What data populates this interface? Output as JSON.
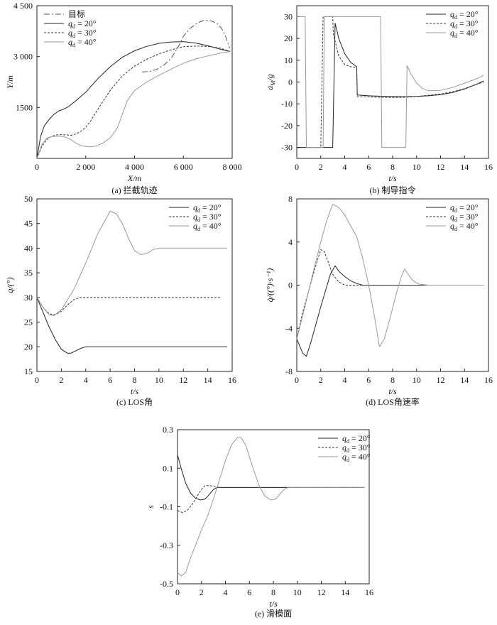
{
  "legend_labels": {
    "target": "目标",
    "q20": "q_d = 20°",
    "q30": "q_d = 30°",
    "q40": "q_d = 40°"
  },
  "chart_data": [
    {
      "id": "a",
      "type": "line",
      "caption": "(a) 拦截轨迹",
      "xlabel": "X/m",
      "ylabel": "Y/m",
      "xlim": [
        0,
        8000
      ],
      "ylim": [
        0,
        4500
      ],
      "xticks": [
        0,
        2000,
        4000,
        6000,
        8000
      ],
      "xticklabels": [
        "0",
        "2 000",
        "4 000",
        "6 000",
        "8 000"
      ],
      "yticks": [
        1500,
        3000,
        4500
      ],
      "yticklabels": [
        "1500",
        "3 000",
        "4 500"
      ],
      "legend_position": "top-left",
      "series": [
        {
          "key": "target",
          "style": "dashdot",
          "x": [
            4300,
            4600,
            4900,
            5200,
            5500,
            5800,
            6000,
            6300,
            6600,
            6800,
            7000,
            7200,
            7400,
            7550,
            7700,
            7800,
            7900
          ],
          "y": [
            2550,
            2560,
            2620,
            2750,
            2950,
            3300,
            3600,
            3850,
            4000,
            4060,
            4070,
            4040,
            3960,
            3850,
            3650,
            3450,
            3250
          ]
        },
        {
          "key": "q20",
          "style": "solid",
          "x": [
            0,
            150,
            300,
            500,
            700,
            900,
            1100,
            1300,
            1600,
            2000,
            2500,
            3000,
            3500,
            4000,
            4500,
            5000,
            5500,
            6000,
            6500,
            7000,
            7500,
            7920
          ],
          "y": [
            0,
            650,
            950,
            1150,
            1300,
            1400,
            1450,
            1530,
            1700,
            1950,
            2350,
            2700,
            2980,
            3170,
            3300,
            3390,
            3430,
            3440,
            3400,
            3320,
            3220,
            3150
          ]
        },
        {
          "key": "q30",
          "style": "dashed",
          "x": [
            0,
            200,
            400,
            600,
            800,
            1000,
            1200,
            1400,
            1600,
            1800,
            2000,
            2200,
            2500,
            3000,
            3500,
            4000,
            4500,
            5000,
            5500,
            6000,
            6500,
            7000,
            7500,
            7920
          ],
          "y": [
            0,
            350,
            550,
            650,
            690,
            700,
            690,
            680,
            720,
            800,
            920,
            1100,
            1450,
            2000,
            2430,
            2720,
            2920,
            3080,
            3200,
            3290,
            3310,
            3300,
            3250,
            3150
          ]
        },
        {
          "key": "q40",
          "style": "solid",
          "x": [
            0,
            200,
            400,
            600,
            800,
            1000,
            1200,
            1400,
            1600,
            1800,
            2000,
            2200,
            2400,
            2700,
            3000,
            3300,
            3500,
            3700,
            4000,
            4500,
            5000,
            5500,
            6000,
            6500,
            7000,
            7500,
            7920
          ],
          "y": [
            0,
            400,
            600,
            640,
            650,
            650,
            620,
            550,
            450,
            380,
            350,
            340,
            360,
            450,
            600,
            900,
            1300,
            1700,
            2000,
            2250,
            2450,
            2630,
            2800,
            2930,
            3020,
            3100,
            3150
          ]
        }
      ]
    },
    {
      "id": "b",
      "type": "line",
      "caption": "(b) 制导指令",
      "xlabel": "t/s",
      "ylabel": "a_M/g",
      "xlim": [
        0,
        16
      ],
      "ylim": [
        -35,
        35
      ],
      "xticks": [
        0,
        2,
        4,
        6,
        8,
        10,
        12,
        14,
        16
      ],
      "yticks": [
        -30,
        -20,
        -10,
        0,
        10,
        20,
        30
      ],
      "legend_position": "top-right",
      "series": [
        {
          "key": "q20",
          "style": "solid",
          "x": [
            0,
            2.3,
            2.3,
            3.0,
            3.2,
            3.5,
            4.0,
            4.5,
            5.0,
            5.05,
            5.2,
            6,
            7,
            8,
            9,
            10,
            11,
            12,
            13,
            14,
            15,
            15.6
          ],
          "y": [
            -30,
            -30,
            -30,
            -30,
            27,
            20,
            13,
            9,
            7,
            -6,
            -6,
            -6.3,
            -6.5,
            -6.6,
            -6.7,
            -6.6,
            -6.3,
            -5.8,
            -4.8,
            -3.2,
            -1,
            0.5
          ]
        },
        {
          "key": "q30",
          "style": "dashed",
          "x": [
            0,
            2.0,
            2.2,
            3.0,
            3.05,
            3.5,
            4.0,
            4.5,
            5.0,
            5.05,
            5.2,
            6,
            7,
            8,
            9,
            10,
            11,
            12,
            13,
            14,
            15,
            15.6
          ],
          "y": [
            -30,
            -30,
            30,
            30,
            22,
            12,
            8,
            7,
            6.5,
            -6.7,
            -6.7,
            -6.8,
            -7.0,
            -7.1,
            -7.0,
            -6.6,
            -6.1,
            -5.5,
            -4.5,
            -3.0,
            -1,
            0
          ]
        },
        {
          "key": "q40",
          "style": "solid",
          "x": [
            0,
            0.7,
            0.8,
            2.2,
            2.3,
            3.0,
            3.1,
            5.0,
            7.0,
            7.1,
            9.1,
            9.2,
            9.5,
            10,
            10.5,
            11,
            12,
            13,
            14,
            15,
            15.6
          ],
          "y": [
            30,
            30,
            -30,
            -30,
            30,
            30,
            30,
            30,
            30,
            -30,
            -30,
            7.5,
            4,
            -0.5,
            -3,
            -4,
            -3.8,
            -2.5,
            -0.5,
            1.5,
            3
          ]
        }
      ]
    },
    {
      "id": "c",
      "type": "line",
      "caption": "(c) LOS角",
      "xlabel": "t/s",
      "ylabel": "q/(°)",
      "xlim": [
        0,
        16
      ],
      "ylim": [
        15,
        50
      ],
      "xticks": [
        0,
        2,
        4,
        6,
        8,
        10,
        12,
        14,
        16
      ],
      "yticks": [
        15,
        20,
        25,
        30,
        35,
        40,
        45,
        50
      ],
      "legend_position": "top-right",
      "series": [
        {
          "key": "q20",
          "style": "solid",
          "x": [
            0,
            0.5,
            1,
            1.5,
            2,
            2.5,
            2.8,
            3.2,
            3.6,
            4,
            5,
            7,
            10,
            13,
            15.6
          ],
          "y": [
            30,
            27,
            24,
            21.5,
            19.5,
            18.7,
            18.7,
            19.2,
            19.7,
            20,
            20,
            20,
            20,
            20,
            20
          ]
        },
        {
          "key": "q30",
          "style": "dashed",
          "x": [
            0,
            0.5,
            1,
            1.5,
            2,
            2.5,
            3,
            3.5,
            4,
            6,
            10,
            15
          ],
          "y": [
            30,
            28,
            26.7,
            26.5,
            27.2,
            28.5,
            29.5,
            30,
            30,
            30,
            30,
            30
          ]
        },
        {
          "key": "q40",
          "style": "solid",
          "x": [
            0,
            0.5,
            1,
            1.4,
            2,
            3,
            4,
            5,
            6,
            6.5,
            7,
            7.5,
            8,
            8.5,
            9,
            9.5,
            10,
            12,
            15.6
          ],
          "y": [
            30,
            28,
            26.5,
            26.3,
            27.5,
            31.5,
            37,
            43,
            47.5,
            47,
            45,
            42,
            39.5,
            38.7,
            38.9,
            39.7,
            40,
            40,
            40
          ]
        }
      ]
    },
    {
      "id": "d",
      "type": "line",
      "caption": "(d) LOS角速率",
      "xlabel": "t/s",
      "ylabel": "q̇/((°)·s⁻¹)",
      "xlim": [
        0,
        16
      ],
      "ylim": [
        -8,
        8
      ],
      "xticks": [
        0,
        2,
        4,
        6,
        8,
        10,
        12,
        14,
        16
      ],
      "yticks": [
        -8,
        -4,
        0,
        4,
        8
      ],
      "legend_position": "top-right",
      "series": [
        {
          "key": "q20",
          "style": "solid",
          "x": [
            0,
            0.5,
            0.8,
            1.2,
            1.6,
            2,
            2.4,
            2.8,
            3.2,
            3.5,
            4,
            4.5,
            5,
            5.5,
            7,
            10,
            15.6
          ],
          "y": [
            -5,
            -6.3,
            -6.6,
            -5.2,
            -3.6,
            -2,
            -0.5,
            1.0,
            1.8,
            1.3,
            0.8,
            0.4,
            0.15,
            0,
            0,
            0,
            0
          ]
        },
        {
          "key": "q30",
          "style": "dashed",
          "x": [
            0,
            0.5,
            1,
            1.5,
            2,
            2.3,
            2.6,
            3,
            3.5,
            4,
            5,
            6,
            10
          ],
          "y": [
            -5,
            -2.5,
            -0.5,
            1.5,
            3.3,
            3.1,
            2.2,
            1.0,
            0.3,
            0,
            0,
            0,
            0
          ]
        },
        {
          "key": "q40",
          "style": "solid",
          "x": [
            0,
            0.5,
            1,
            1.5,
            2,
            2.5,
            3,
            3.5,
            4,
            4.5,
            5,
            5.5,
            6,
            6.5,
            6.9,
            7.3,
            7.8,
            8.3,
            8.7,
            9.0,
            9.3,
            9.7,
            10.2,
            11,
            12,
            15.6
          ],
          "y": [
            -5,
            -2.8,
            -0.5,
            1.8,
            4,
            6,
            7.5,
            7.2,
            6.5,
            5.5,
            4.5,
            2.5,
            0,
            -3,
            -5.7,
            -5.0,
            -3,
            -0.8,
            0.7,
            1.5,
            1.0,
            0.4,
            0.1,
            0,
            0,
            0
          ]
        }
      ]
    },
    {
      "id": "e",
      "type": "line",
      "caption": "(e) 滑模面",
      "xlabel": "t/s",
      "ylabel": "s",
      "xlim": [
        0,
        16
      ],
      "ylim": [
        -0.5,
        0.3
      ],
      "xticks": [
        0,
        2,
        4,
        6,
        8,
        10,
        12,
        14,
        16
      ],
      "yticks": [
        -0.5,
        -0.3,
        -0.1,
        0.1,
        0.3
      ],
      "legend_position": "top-right",
      "series": [
        {
          "key": "q20",
          "style": "solid",
          "x": [
            0,
            0.3,
            0.7,
            1.1,
            1.5,
            1.9,
            2.3,
            2.6,
            3.0,
            3.3,
            5,
            10,
            15.6
          ],
          "y": [
            0.17,
            0.1,
            0.02,
            -0.03,
            -0.055,
            -0.065,
            -0.06,
            -0.04,
            -0.01,
            0,
            0,
            0,
            0
          ]
        },
        {
          "key": "q30",
          "style": "dashed",
          "x": [
            0,
            0.4,
            0.8,
            1.2,
            1.6,
            2.0,
            2.3,
            2.7,
            3.1,
            3.5,
            5,
            10,
            15.6
          ],
          "y": [
            -0.12,
            -0.13,
            -0.12,
            -0.09,
            -0.05,
            -0.01,
            0.01,
            0.01,
            0.005,
            0,
            0,
            0,
            0
          ]
        },
        {
          "key": "q40",
          "style": "solid",
          "x": [
            0,
            0.3,
            0.7,
            1,
            1.5,
            2,
            2.5,
            3,
            3.5,
            4,
            4.5,
            5,
            5.3,
            5.7,
            6.2,
            6.8,
            7.3,
            7.8,
            8.2,
            8.6,
            9.0,
            9.3,
            10,
            15.6
          ],
          "y": [
            -0.44,
            -0.46,
            -0.44,
            -0.38,
            -0.3,
            -0.22,
            -0.15,
            -0.06,
            0.04,
            0.14,
            0.22,
            0.26,
            0.26,
            0.22,
            0.12,
            0.01,
            -0.045,
            -0.065,
            -0.06,
            -0.03,
            -0.005,
            0,
            0,
            0
          ]
        }
      ]
    }
  ]
}
